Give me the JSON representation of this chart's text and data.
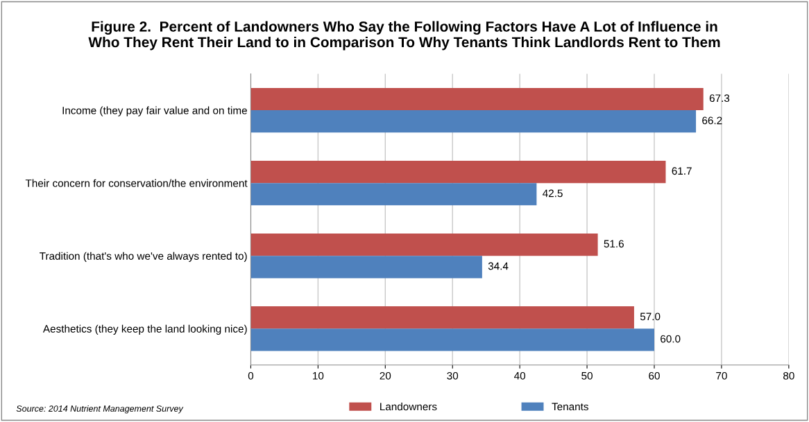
{
  "chart_data": {
    "type": "bar",
    "orientation": "horizontal",
    "title": "Figure 2.  Percent of Landowners Who Say the Following Factors Have A Lot of Influence in\nWho They Rent Their Land to in Comparison To Why Tenants Think Landlords Rent to Them",
    "categories": [
      "Income (they pay fair value and on time",
      "Their concern for conservation/the environment",
      "Tradition (that's who we've always rented to)",
      "Aesthetics (they keep the land looking nice)"
    ],
    "series": [
      {
        "name": "Landowners",
        "color": "#c0504d",
        "values": [
          67.3,
          61.7,
          51.6,
          57.0
        ],
        "value_labels": [
          "67.3",
          "61.7",
          "51.6",
          "57.0"
        ]
      },
      {
        "name": "Tenants",
        "color": "#4f81bd",
        "values": [
          66.2,
          42.5,
          34.4,
          60.0
        ],
        "value_labels": [
          "66.2",
          "42.5",
          "34.4",
          "60.0"
        ]
      }
    ],
    "xlim": [
      0,
      80
    ],
    "xticks": [
      0,
      10,
      20,
      30,
      40,
      50,
      60,
      70,
      80
    ],
    "grid": "x",
    "legend": "bottom",
    "annotations": [
      "Source: 2014 Nutrient Management Survey"
    ]
  }
}
